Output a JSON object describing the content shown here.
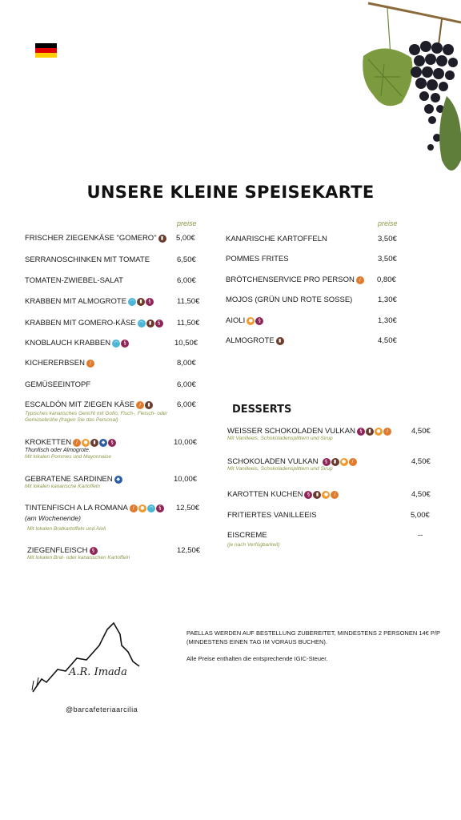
{
  "title": "UNSERE KLEINE SPEISEKARTE",
  "preise_label": "preise",
  "left_items": [
    {
      "name": "FRISCHER ZIEGENKÄSE \"GOMERO\"",
      "price": "5,00€",
      "icons": [
        "milk-icon"
      ]
    },
    {
      "name": "SERRANOSCHINKEN MIT TOMATE",
      "price": "6,50€",
      "icons": []
    },
    {
      "name": "TOMATEN-ZWIEBEL-SALAT",
      "price": "6,00€",
      "icons": []
    },
    {
      "name": "KRABBEN MIT ALMOGROTE",
      "price": "11,50€",
      "icons": [
        "crustacean-icon",
        "milk-icon",
        "sulphite-icon"
      ]
    },
    {
      "name": "KRABBEN MIT GOMERO-KÄSE",
      "price": "11,50€",
      "icons": [
        "crustacean-icon",
        "milk-icon",
        "sulphite-icon"
      ]
    },
    {
      "name": "KNOBLAUCH KRABBEN",
      "price": "10,50€",
      "icons": [
        "crustacean-icon",
        "sulphite-icon"
      ]
    },
    {
      "name": "KICHERERBSEN",
      "price": "8,00€",
      "icons": [
        "gluten-icon"
      ]
    },
    {
      "name": "GEMÜSEEINTOPF",
      "price": "6,00€",
      "icons": []
    },
    {
      "name": "ESCALDÓN MIT ZIEGEN KÄSE",
      "price": "6,00€",
      "icons": [
        "gluten-icon",
        "milk-icon"
      ],
      "desc": "Typisches kanarisches Gericht mit Gofio, Fisch-, Fleisch- oder Gemüsebrühe (fragen Sie das Personal)"
    },
    {
      "name": "KROKETTEN",
      "price": "10,00€",
      "icons": [
        "gluten-icon",
        "egg-icon",
        "milk-icon",
        "fish-icon",
        "sulphite-icon"
      ],
      "desc_black": "Thunfisch oder Almogrote.",
      "desc": "Mit lokalen Pommes und Mayonnaise"
    },
    {
      "name": "GEBRATENE SARDINEN",
      "price": "10,00€",
      "icons": [
        "fish-icon"
      ],
      "desc": "Mit lokalen kanarische Kartoffeln"
    },
    {
      "name": "TINTENFISCH A LA ROMANA",
      "price": "12,50€",
      "icons": [
        "gluten-icon",
        "egg-icon",
        "mollusc-icon",
        "sulphite-icon"
      ],
      "desc_black": "(am Wochenende)",
      "desc": "Mit lokalen Bratkartoffeln und Aioli"
    },
    {
      "name": "ZIEGENFLEISCH",
      "price": "12,50€",
      "icons": [
        "sulphite-icon"
      ],
      "desc": "Mit lokalen Brat- oder kanarischen Kartoffeln"
    }
  ],
  "right_items": [
    {
      "name": "KANARISCHE KARTOFFELN",
      "price": "3,50€",
      "icons": []
    },
    {
      "name": "POMMES FRITES",
      "price": "3,50€",
      "icons": []
    },
    {
      "name": "BRÖTCHENSERVICE PRO PERSON",
      "price": "0,80€",
      "icons": [
        "gluten-icon"
      ]
    },
    {
      "name": "MOJOS (GRÜN UND ROTE SOSSE)",
      "price": "1,30€",
      "icons": []
    },
    {
      "name": "AIOLI",
      "price": "1,30€",
      "icons": [
        "egg-icon",
        "sulphite-icon"
      ]
    },
    {
      "name": "ALMOGROTE",
      "price": "4,50€",
      "icons": [
        "milk-icon"
      ]
    }
  ],
  "desserts_title": "DESSERTS",
  "desserts": [
    {
      "name": "WEISSER SCHOKOLADEN VULKAN",
      "price": "4,50€",
      "icons": [
        "sulphite-icon",
        "milk-icon",
        "egg-icon",
        "gluten-icon"
      ],
      "desc": "Mit Vanilleeis, Schokoladensplittern und Sirup"
    },
    {
      "name": "SCHOKOLADEN VULKAN",
      "price": "4,50€",
      "icons": [
        "sulphite-icon",
        "milk-icon",
        "egg-icon",
        "gluten-icon"
      ],
      "desc": "Mit Vanilleeis, Schokoladensplittern und Sirup"
    },
    {
      "name": "KAROTTEN KUCHEN",
      "price": "4,50€",
      "icons": [
        "sulphite-icon",
        "milk-icon",
        "egg-icon",
        "gluten-icon"
      ]
    },
    {
      "name": "FRITIERTES VANILLEEIS",
      "price": "5,00€",
      "icons": []
    },
    {
      "name": "EISCREME",
      "price": "--",
      "icons": [],
      "desc": "(je nach Verfügbarkeit)"
    }
  ],
  "note": "PAELLAS WERDEN AUF BESTELLUNG ZUBEREITET, MINDESTENS 2 PERSONEN 14€ P/P (MINDESTENS EINEN TAG IM VORAUS BUCHEN).",
  "note2": "Alle Preise enthalten die entsprechende IGIC-Steuer.",
  "signature": "A.R. Imada",
  "instagram": "@barcafeteriaarcilia",
  "colors": {
    "accent_green": "#8b9a4a",
    "flag_black": "#000000",
    "flag_red": "#dd0000",
    "flag_gold": "#ffce00"
  }
}
